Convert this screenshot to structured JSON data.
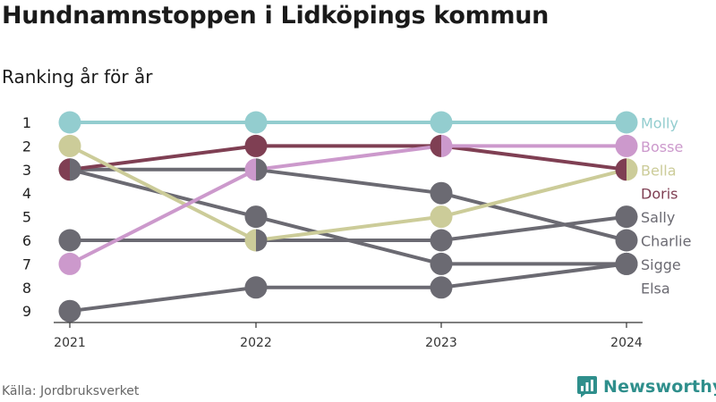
{
  "chart_data": {
    "type": "line",
    "title": "Hundnamnstoppen i Lidköpings kommun",
    "subtitle": "Ranking år för år",
    "x": [
      "2021",
      "2022",
      "2023",
      "2024"
    ],
    "y_ticks": [
      "1",
      "2",
      "3",
      "4",
      "5",
      "6",
      "7",
      "8",
      "9"
    ],
    "ylim": [
      1,
      9
    ],
    "y_reversed": true,
    "grid": false,
    "legend": "end-labels-right",
    "series": [
      {
        "name": "Molly",
        "values": [
          1,
          1,
          1,
          1
        ],
        "color": "#93cdcf"
      },
      {
        "name": "Bosse",
        "values": [
          7,
          3,
          2,
          2
        ],
        "color": "#cc99cc"
      },
      {
        "name": "Bella",
        "values": [
          2,
          6,
          5,
          3
        ],
        "color": "#cccc99"
      },
      {
        "name": "Doris",
        "values": [
          3,
          2,
          2,
          3
        ],
        "color": "#7f3f53"
      },
      {
        "name": "Sally",
        "values": [
          6,
          6,
          6,
          5
        ],
        "color": "#6b6a72"
      },
      {
        "name": "Charlie",
        "values": [
          3,
          3,
          4,
          6
        ],
        "color": "#6b6a72"
      },
      {
        "name": "Sigge",
        "values": [
          3,
          5,
          7,
          7
        ],
        "color": "#6b6a72"
      },
      {
        "name": "Elsa",
        "values": [
          9,
          8,
          8,
          7
        ],
        "color": "#6b6a72"
      }
    ],
    "end_labels": [
      {
        "name": "Molly",
        "rank": 1,
        "color": "#93cdcf"
      },
      {
        "name": "Bosse",
        "rank": 2,
        "color": "#cc99cc"
      },
      {
        "name": "Bella",
        "rank": 3,
        "color": "#cccc99"
      },
      {
        "name": "Doris",
        "rank": 4,
        "color": "#7f3f53"
      },
      {
        "name": "Sally",
        "rank": 5,
        "color": "#6b6a72"
      },
      {
        "name": "Charlie",
        "rank": 6,
        "color": "#6b6a72"
      },
      {
        "name": "Sigge",
        "rank": 7,
        "color": "#6b6a72"
      },
      {
        "name": "Elsa",
        "rank": 8,
        "color": "#6b6a72"
      }
    ]
  },
  "footer": {
    "source": "Källa: Jordbruksverket",
    "brand": "Newsworthy",
    "brand_color": "#2f8f8c"
  }
}
